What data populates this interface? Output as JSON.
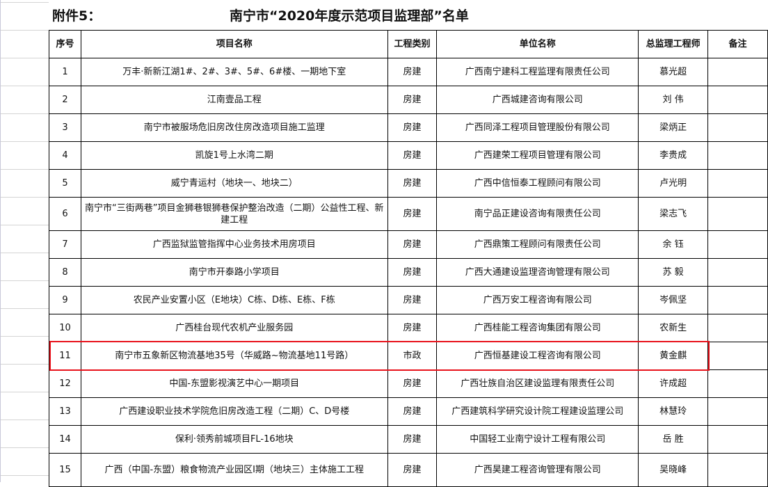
{
  "attachment_label": "附件5：",
  "title": "南宁市“2020年度示范项目监理部”名单",
  "highlight_color": "#e8121b",
  "highlighted_row": "11",
  "columns": [
    "序号",
    "项目名称",
    "工程类别",
    "单位名称",
    "总监理工程师",
    "备注"
  ],
  "rows": [
    [
      "1",
      "万丰·新新江湖1#、2#、3#、5#、6#楼、一期地下室",
      "房建",
      "广西南宁建科工程监理有限责任公司",
      "慕光超",
      ""
    ],
    [
      "2",
      "江南壹品工程",
      "房建",
      "广西城建咨询有限公司",
      "刘 伟",
      ""
    ],
    [
      "3",
      "南宁市被服场危旧房改住房改造项目施工监理",
      "房建",
      "广西同泽工程项目管理股份有限公司",
      "梁炳正",
      ""
    ],
    [
      "4",
      "凯旋1号上水湾二期",
      "房建",
      "广西建荣工程项目管理有限公司",
      "李贵成",
      ""
    ],
    [
      "5",
      "威宁青运村（地块一、地块二）",
      "房建",
      "广西中信恒泰工程顾问有限公司",
      "卢光明",
      ""
    ],
    [
      "6",
      "南宁市“三街两巷”项目金狮巷银狮巷保护整治改造（二期）公益性工程、新建工程",
      "房建",
      "南宁品正建设咨询有限责任公司",
      "梁志飞",
      ""
    ],
    [
      "7",
      "广西监狱监管指挥中心业务技术用房项目",
      "房建",
      "广西鼎策工程顾问有限责任公司",
      "余 钰",
      ""
    ],
    [
      "8",
      "南宁市开泰路小学项目",
      "房建",
      "广西大通建设监理咨询管理有限公司",
      "苏 毅",
      ""
    ],
    [
      "9",
      "农民产业安置小区（E地块）C栋、D栋、E栋、F栋",
      "房建",
      "广西万安工程咨询有限公司",
      "岑佩坚",
      ""
    ],
    [
      "10",
      "广西桂台现代农机产业服务园",
      "房建",
      "广西桂能工程咨询集团有限公司",
      "农新生",
      ""
    ],
    [
      "11",
      "南宁市五象新区物流基地35号（华威路~物流基地11号路）",
      "市政",
      "广西恒基建设工程咨询有限公司",
      "黄金麒",
      ""
    ],
    [
      "12",
      "中国-东盟影视演艺中心一期项目",
      "房建",
      "广西壮族自治区建设监理有限责任公司",
      "许成超",
      ""
    ],
    [
      "13",
      "广西建设职业技术学院危旧房改造工程（二期）C、D号楼",
      "房建",
      "广西建筑科学研究设计院工程建设监理公司",
      "林慧玲",
      ""
    ],
    [
      "14",
      "保利·领秀前城项目FL-16地块",
      "房建",
      "中国轻工业南宁设计工程有限公司",
      "岳 胜",
      ""
    ],
    [
      "15",
      "广西（中国-东盟）粮食物流产业园区Ⅰ期（地块三）主体施工工程",
      "房建",
      "广西昊建工程咨询管理有限公司",
      "吴晓峰",
      ""
    ]
  ]
}
